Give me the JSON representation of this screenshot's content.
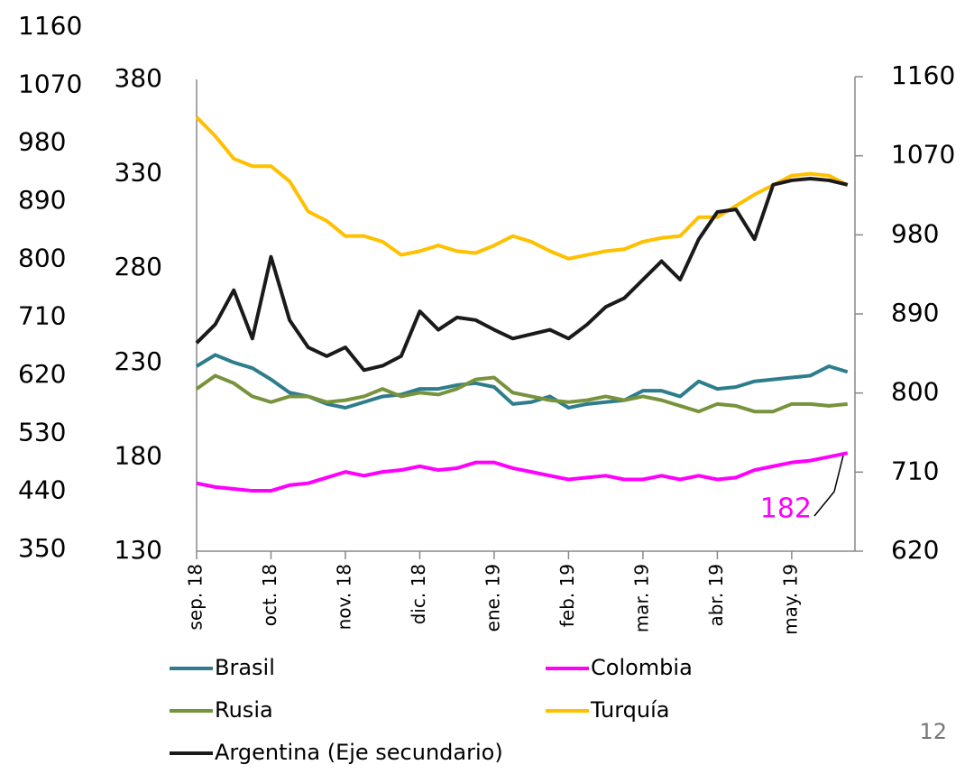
{
  "chart_data": {
    "type": "line",
    "xlim": [
      0,
      8.85
    ],
    "xticks": [
      {
        "value": 0,
        "label": "sep. 18"
      },
      {
        "value": 1,
        "label": "oct. 18"
      },
      {
        "value": 2,
        "label": "nov. 18"
      },
      {
        "value": 3,
        "label": "dic. 18"
      },
      {
        "value": 4,
        "label": "ene. 19"
      },
      {
        "value": 5,
        "label": "feb. 19"
      },
      {
        "value": 6,
        "label": "mar. 19"
      },
      {
        "value": 7,
        "label": "abr. 19"
      },
      {
        "value": 8,
        "label": "may. 19"
      }
    ],
    "ylim": [
      130,
      380
    ],
    "yticks": [
      130,
      180,
      230,
      280,
      330,
      380
    ],
    "y2lim": [
      620,
      1160
    ],
    "y2ticks": [
      620,
      710,
      800,
      890,
      980,
      1070,
      1160
    ],
    "y3lim": [
      350,
      1160
    ],
    "y3ticks": [
      350,
      440,
      530,
      620,
      710,
      800,
      890,
      980,
      1070,
      1160
    ],
    "x": [
      0,
      0.25,
      0.5,
      0.75,
      1,
      1.25,
      1.5,
      1.75,
      2,
      2.25,
      2.5,
      2.75,
      3,
      3.25,
      3.5,
      3.75,
      4,
      4.25,
      4.5,
      4.75,
      5,
      5.25,
      5.5,
      5.75,
      6,
      6.25,
      6.5,
      6.75,
      7,
      7.25,
      7.5,
      7.75,
      8,
      8.25,
      8.5,
      8.75
    ],
    "series": [
      {
        "name": "Brasil",
        "color": "#2e7d8c",
        "values": [
          228,
          234,
          230,
          227,
          221,
          214,
          212,
          208,
          206,
          209,
          212,
          213,
          216,
          216,
          218,
          219,
          217,
          208,
          209,
          212,
          206,
          208,
          209,
          210,
          215,
          215,
          212,
          220,
          216,
          217,
          220,
          221,
          222,
          223,
          228,
          225
        ]
      },
      {
        "name": "Colombia",
        "color": "#ff00ff",
        "values": [
          166,
          164,
          163,
          162,
          162,
          165,
          166,
          169,
          172,
          170,
          172,
          173,
          175,
          173,
          174,
          177,
          177,
          174,
          172,
          170,
          168,
          169,
          170,
          168,
          168,
          170,
          168,
          170,
          168,
          169,
          173,
          175,
          177,
          178,
          180,
          182
        ]
      },
      {
        "name": "Rusia",
        "color": "#77933c",
        "values": [
          216,
          223,
          219,
          212,
          209,
          212,
          212,
          209,
          210,
          212,
          216,
          212,
          214,
          213,
          216,
          221,
          222,
          214,
          212,
          210,
          209,
          210,
          212,
          210,
          212,
          210,
          207,
          204,
          208,
          207,
          204,
          204,
          208,
          208,
          207,
          208
        ]
      },
      {
        "name": "Turquía",
        "color": "#ffc000",
        "values": [
          360,
          350,
          338,
          334,
          334,
          326,
          310,
          305,
          297,
          297,
          294,
          287,
          289,
          292,
          289,
          288,
          292,
          297,
          294,
          289,
          285,
          287,
          289,
          290,
          294,
          296,
          297,
          307,
          307,
          313,
          319,
          324,
          329,
          330,
          329,
          324
        ]
      },
      {
        "name": "Argentina (Eje secundario)",
        "color": "#1a1a1a",
        "axis": "y2",
        "values": [
          857,
          878,
          917,
          862,
          955,
          883,
          852,
          842,
          852,
          826,
          831,
          842,
          893,
          872,
          886,
          883,
          872,
          862,
          867,
          872,
          862,
          878,
          898,
          908,
          929,
          950,
          929,
          975,
          1006,
          1009,
          975,
          1037,
          1042,
          1044,
          1042,
          1037
        ]
      }
    ]
  },
  "page_number": "12"
}
